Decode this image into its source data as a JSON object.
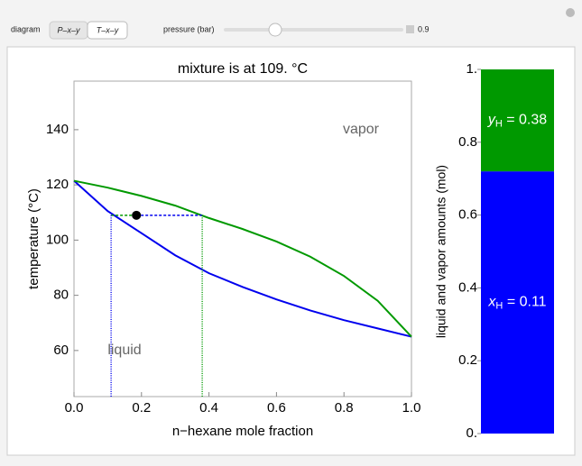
{
  "controls": {
    "diagram_label": "diagram",
    "buttons": [
      "P–x–y",
      "T–x–y"
    ],
    "pressure_label": "pressure (bar)",
    "pressure": "0.9"
  },
  "chart_data": [
    {
      "type": "line",
      "title": "mixture is at 109. °C",
      "x_label": "n−hexane mole fraction",
      "y_label": "temperature (°C)",
      "x": [
        0,
        0.1,
        0.2,
        0.3,
        0.4,
        0.5,
        0.6,
        0.7,
        0.8,
        0.9,
        1
      ],
      "series": [
        {
          "color": "#0000ee",
          "values": [
            121.5,
            110.5,
            102.5,
            94.5,
            88,
            83,
            78.5,
            74.5,
            71,
            68,
            65
          ]
        },
        {
          "color": "#009900",
          "values": [
            121.5,
            119,
            116,
            112.5,
            108,
            104,
            99.5,
            94,
            87,
            78,
            65
          ]
        }
      ],
      "xlim": [
        0,
        1
      ],
      "xticks": [
        {
          "value": 0,
          "label": "0.0"
        },
        0.2,
        0.4,
        0.6,
        0.8,
        {
          "value": 1,
          "label": "1.0"
        }
      ],
      "ylim": [
        43.3,
        157.6
      ],
      "yticks": [
        60,
        80,
        100,
        120,
        140
      ],
      "annotations": [
        "vapor",
        "liquid"
      ],
      "tie_line": {
        "temperature": 109,
        "x_liquid": 0.11,
        "x_vapor": 0.38,
        "x_mixture": 0.185
      }
    },
    {
      "type": "bar",
      "stacked": true,
      "y_label": "liquid and vapor amounts (mol)",
      "series": [
        {
          "color": "#0000ff",
          "values": [
            0.72
          ]
        },
        {
          "color": "#009900",
          "values": [
            0.28
          ]
        }
      ],
      "ylim": [
        0,
        1
      ],
      "yticks": [
        {
          "value": 0,
          "label": "0."
        },
        0.2,
        0.4,
        0.6,
        0.8,
        {
          "value": 1,
          "label": "1."
        }
      ],
      "annotations": [
        {
          "symbol": "x",
          "sub": "H",
          "text": " = 0.11"
        },
        {
          "symbol": "y",
          "sub": "H",
          "text": " = 0.38"
        }
      ]
    }
  ]
}
